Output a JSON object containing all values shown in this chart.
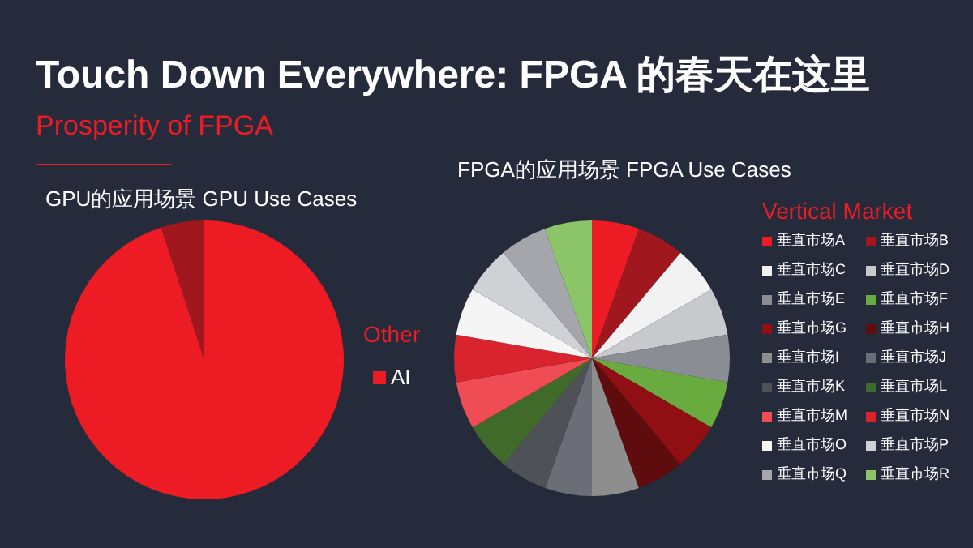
{
  "chart_data": [
    {
      "type": "other",
      "title": "Touch Down Everywhere: FPGA 的春天在这里",
      "subtitle": "Prosperity of FPGA"
    },
    {
      "type": "pie",
      "title": "GPU的应用场景 GPU Use Cases",
      "legend_title": "Other",
      "legend": "right",
      "categories": [
        "AI",
        null
      ],
      "values": [
        95,
        5
      ],
      "colors": [
        "#ed1c24",
        "#a0171e"
      ]
    },
    {
      "type": "pie",
      "title": "FPGA的应用场景 FPGA Use Cases",
      "legend_title": "Vertical Market",
      "legend": "right",
      "categories": [
        "垂直市场A",
        "垂直市场B",
        "垂直市场C",
        "垂直市场D",
        "垂直市场E",
        "垂直市场F",
        "垂直市场G",
        "垂直市场H",
        "垂直市场I",
        "垂直市场J",
        "垂直市场K",
        "垂直市场L",
        "垂直市场M",
        "垂直市场N",
        "垂直市场O",
        "垂直市场P",
        "垂直市场Q",
        "垂直市场R"
      ],
      "values": [
        5.56,
        5.56,
        5.56,
        5.56,
        5.56,
        5.56,
        5.56,
        5.56,
        5.52,
        5.52,
        5.56,
        5.56,
        5.56,
        5.56,
        5.56,
        5.56,
        5.56,
        5.56
      ],
      "colors": [
        "#ed1c24",
        "#a0171e",
        "#f2f2f2",
        "#c8c9cc",
        "#8a8d94",
        "#6aab3f",
        "#8f0f12",
        "#5f0c0f",
        "#8e8e8e",
        "#6b6e76",
        "#4f5158",
        "#3f6a2a",
        "#f04c55",
        "#d9232d",
        "#f5f5f5",
        "#d0d1d5",
        "#a5a6ab",
        "#8cc46a"
      ]
    }
  ]
}
